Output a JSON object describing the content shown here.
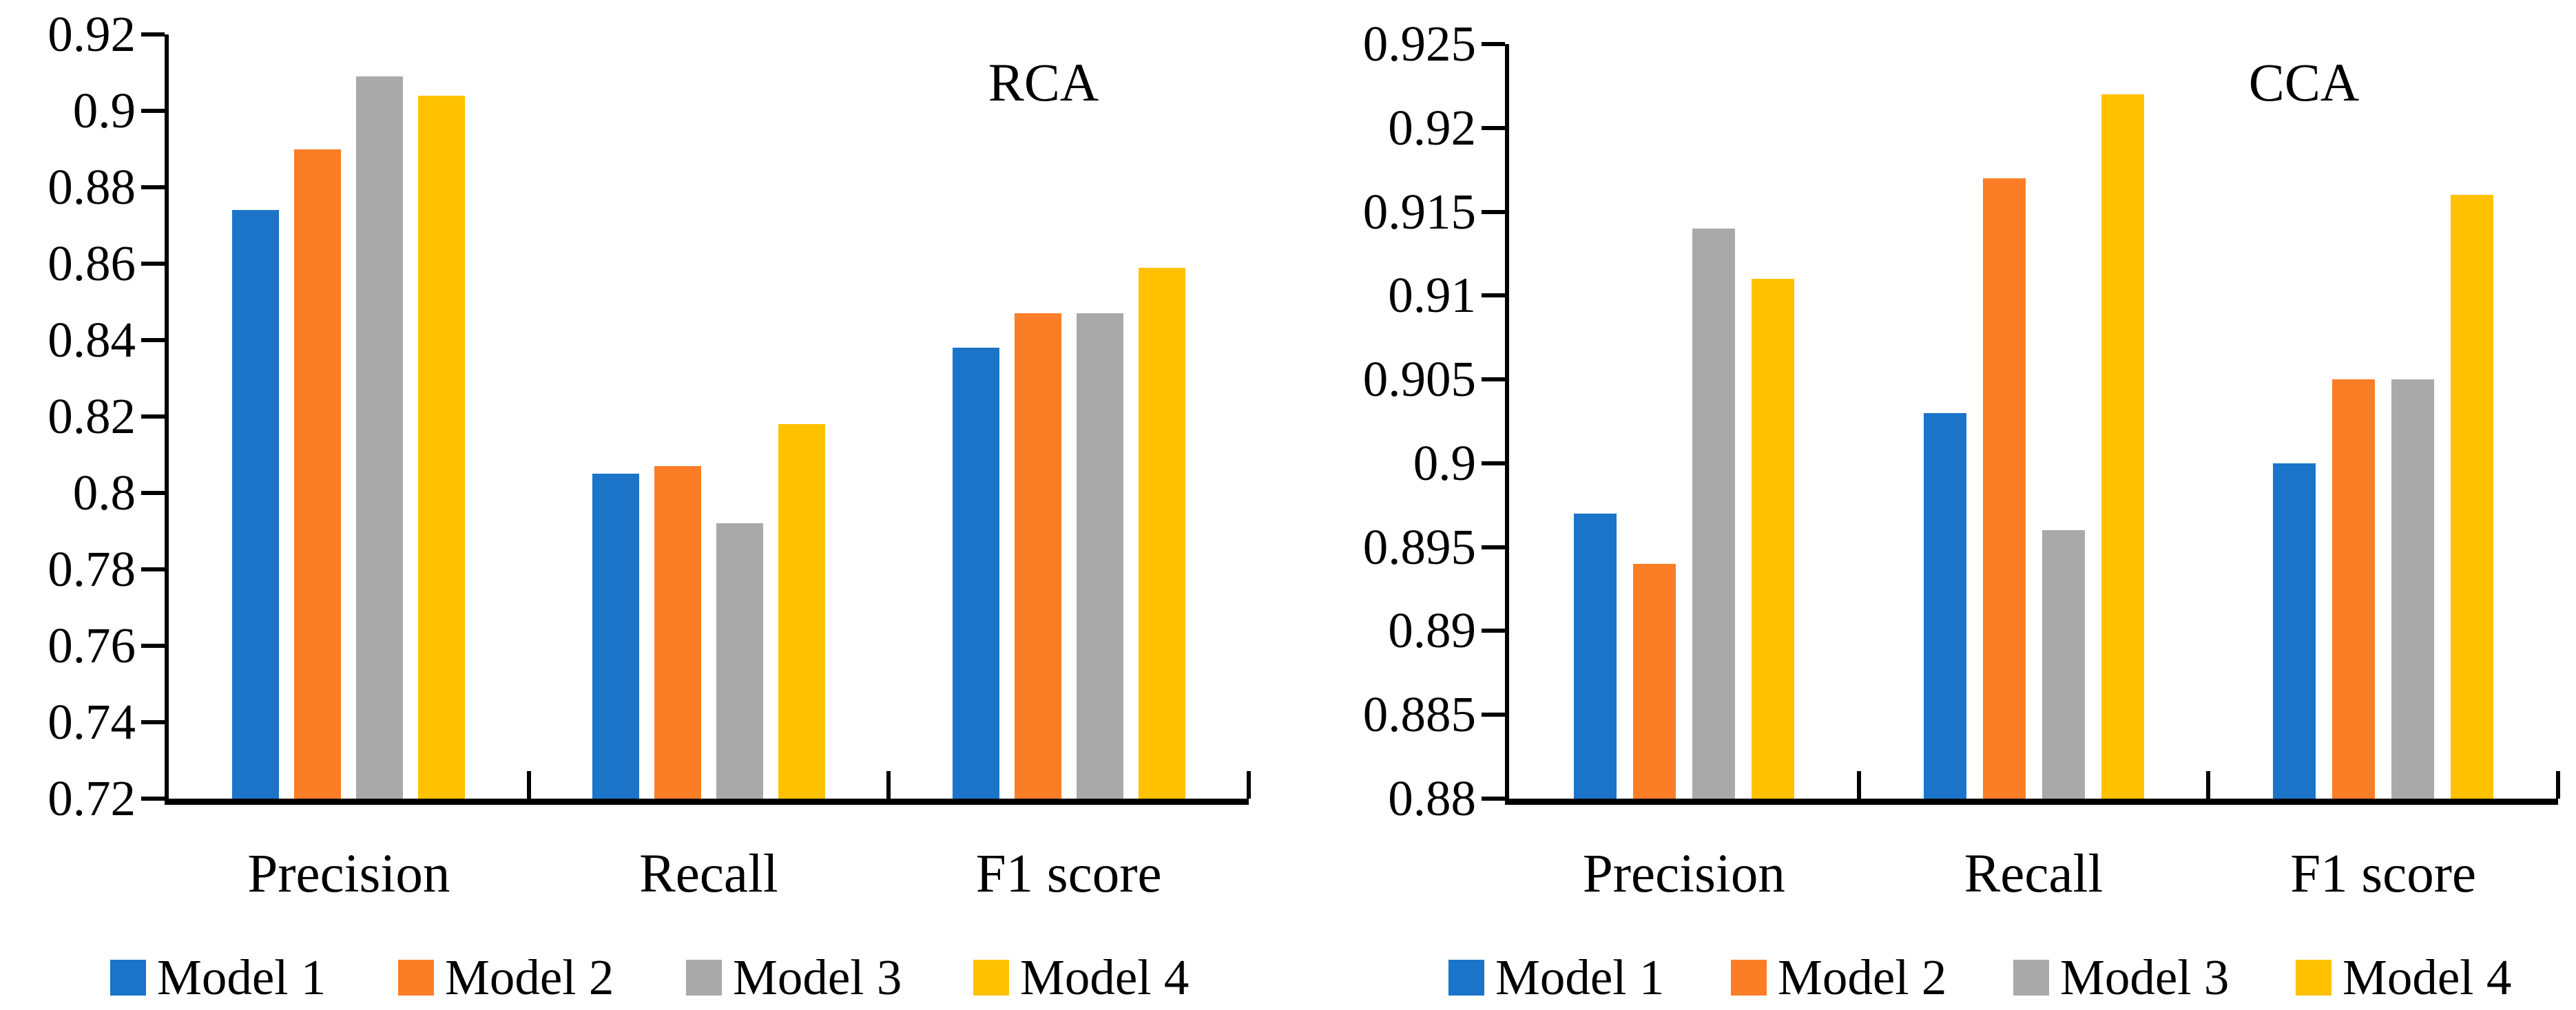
{
  "page": {
    "background": "#FFFFFF",
    "text_color": "#000000"
  },
  "chart_data": [
    {
      "type": "bar",
      "title": "RCA",
      "categories": [
        "Precision",
        "Recall",
        "F1 score"
      ],
      "series": [
        {
          "name": "Model 1",
          "color": "#1B74C8",
          "values": [
            0.874,
            0.805,
            0.838
          ]
        },
        {
          "name": "Model 2",
          "color": "#FB7D26",
          "values": [
            0.89,
            0.807,
            0.847
          ]
        },
        {
          "name": "Model 3",
          "color": "#A9A9A9",
          "values": [
            0.909,
            0.792,
            0.847
          ]
        },
        {
          "name": "Model 4",
          "color": "#FFC100",
          "values": [
            0.904,
            0.818,
            0.859
          ]
        }
      ],
      "ylim": [
        0.72,
        0.92
      ],
      "y_step": 0.02,
      "y_tick_labels": [
        "0.72",
        "0.74",
        "0.76",
        "0.78",
        "0.8",
        "0.82",
        "0.84",
        "0.86",
        "0.88",
        "0.9",
        "0.92"
      ],
      "xlabel": "",
      "ylabel": "",
      "grid": false,
      "legend_position": "bottom"
    },
    {
      "type": "bar",
      "title": "CCA",
      "categories": [
        "Precision",
        "Recall",
        "F1 score"
      ],
      "series": [
        {
          "name": "Model 1",
          "color": "#1B74C8",
          "values": [
            0.897,
            0.903,
            0.9
          ]
        },
        {
          "name": "Model 2",
          "color": "#FB7D26",
          "values": [
            0.894,
            0.917,
            0.905
          ]
        },
        {
          "name": "Model 3",
          "color": "#A9A9A9",
          "values": [
            0.914,
            0.896,
            0.905
          ]
        },
        {
          "name": "Model 4",
          "color": "#FFC100",
          "values": [
            0.911,
            0.922,
            0.916
          ]
        }
      ],
      "ylim": [
        0.88,
        0.925
      ],
      "y_step": 0.005,
      "y_tick_labels": [
        "0.88",
        "0.885",
        "0.89",
        "0.895",
        "0.9",
        "0.905",
        "0.91",
        "0.915",
        "0.92",
        "0.925"
      ],
      "xlabel": "",
      "ylabel": "",
      "grid": false,
      "legend_position": "bottom"
    }
  ]
}
